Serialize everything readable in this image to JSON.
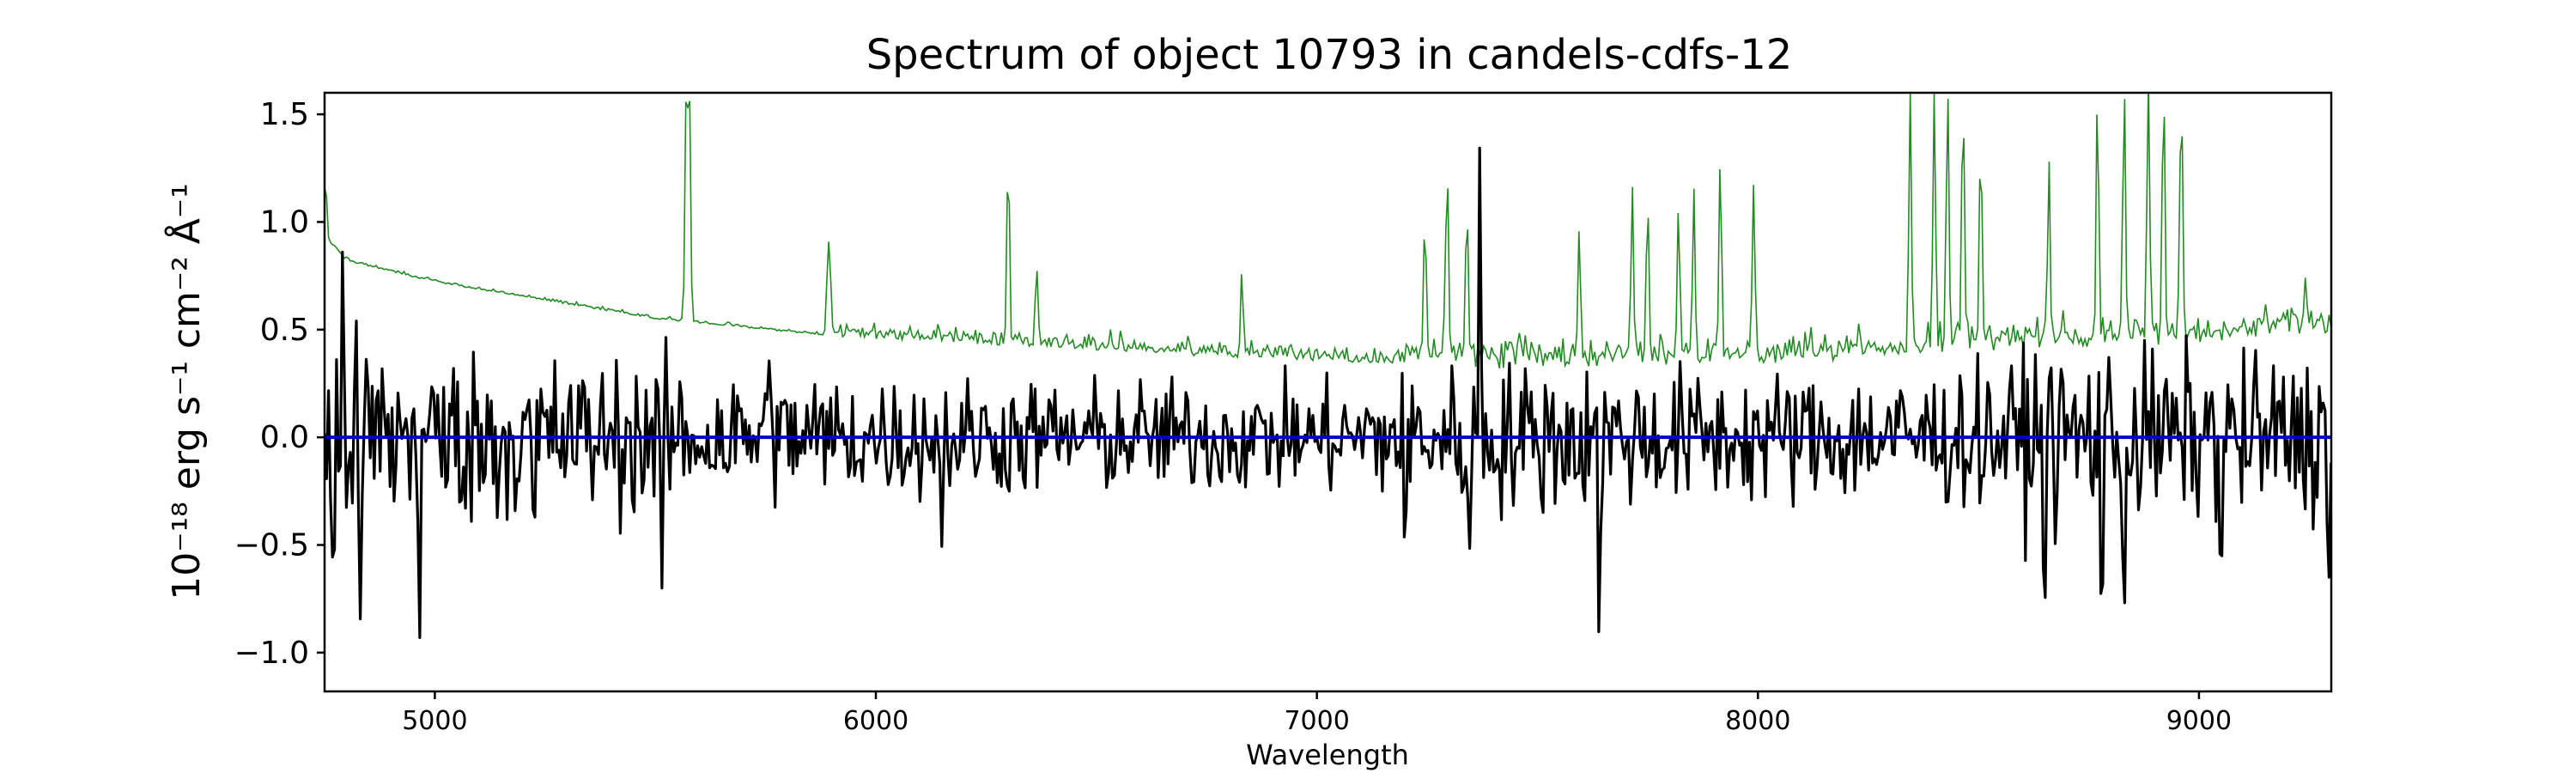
{
  "chart_data": {
    "type": "line",
    "title": "Spectrum of object 10793 in candels-cdfs-12",
    "xlabel": "Wavelength",
    "ylabel": "10⁻¹⁸ erg s⁻¹ cm⁻² Å⁻¹",
    "xlim": [
      4750,
      9300
    ],
    "ylim": [
      -1.18,
      1.6
    ],
    "xticks": [
      5000,
      6000,
      7000,
      8000,
      9000
    ],
    "yticks": [
      -1.0,
      -0.5,
      0.0,
      0.5,
      1.0,
      1.5
    ],
    "ytick_labels": [
      "−1.0",
      "−0.5",
      "0.0",
      "0.5",
      "1.0",
      "1.5"
    ],
    "grid": false,
    "series": [
      {
        "role": "error",
        "color": "#228b22",
        "continuum": [
          [
            4750,
            0.93
          ],
          [
            4800,
            0.82
          ],
          [
            5000,
            0.72
          ],
          [
            5500,
            0.55
          ],
          [
            6000,
            0.45
          ],
          [
            6500,
            0.4
          ],
          [
            7000,
            0.35
          ],
          [
            7500,
            0.3
          ],
          [
            8000,
            0.33
          ],
          [
            8500,
            0.38
          ],
          [
            9000,
            0.42
          ],
          [
            9300,
            0.47
          ]
        ],
        "peaks": [
          [
            4752,
            1.2
          ],
          [
            5570,
            1.6
          ],
          [
            5577,
            1.6
          ],
          [
            5891,
            0.82
          ],
          [
            5896,
            0.75
          ],
          [
            6300,
            1.3
          ],
          [
            6364,
            0.75
          ],
          [
            6830,
            0.75
          ],
          [
            7245,
            1.0
          ],
          [
            7295,
            1.2
          ],
          [
            7340,
            1.1
          ],
          [
            7595,
            0.95
          ],
          [
            7715,
            1.1
          ],
          [
            7750,
            1.05
          ],
          [
            7820,
            1.05
          ],
          [
            7855,
            1.1
          ],
          [
            7915,
            1.25
          ],
          [
            7990,
            1.1
          ],
          [
            8345,
            1.6
          ],
          [
            8400,
            1.6
          ],
          [
            8430,
            1.6
          ],
          [
            8465,
            1.5
          ],
          [
            8505,
            1.3
          ],
          [
            8660,
            1.2
          ],
          [
            8770,
            1.6
          ],
          [
            8830,
            1.6
          ],
          [
            8885,
            1.6
          ],
          [
            8920,
            1.6
          ],
          [
            8960,
            1.6
          ],
          [
            9240,
            0.65
          ]
        ]
      },
      {
        "role": "flux",
        "color": "#000000",
        "noise_sigma": [
          [
            4750,
            0.42
          ],
          [
            5000,
            0.33
          ],
          [
            6000,
            0.22
          ],
          [
            7000,
            0.2
          ],
          [
            7400,
            0.28
          ],
          [
            8000,
            0.24
          ],
          [
            8500,
            0.25
          ],
          [
            8700,
            0.35
          ],
          [
            9000,
            0.3
          ],
          [
            9300,
            0.3
          ]
        ],
        "spikes": [
          [
            4770,
            -1.02
          ],
          [
            4792,
            1.07
          ],
          [
            4830,
            -0.95
          ],
          [
            4965,
            -1.0
          ],
          [
            5225,
            -0.68
          ],
          [
            5515,
            -0.7
          ],
          [
            5760,
            0.6
          ],
          [
            6150,
            -0.52
          ],
          [
            7200,
            -0.7
          ],
          [
            7370,
            1.49
          ],
          [
            7345,
            -0.72
          ],
          [
            7640,
            -0.98
          ],
          [
            8650,
            -0.92
          ],
          [
            8780,
            -1.03
          ],
          [
            8830,
            -1.0
          ],
          [
            9050,
            -0.88
          ],
          [
            9295,
            -0.65
          ]
        ]
      },
      {
        "role": "model",
        "color": "#0000cd",
        "x": [
          4750,
          9300
        ],
        "y": [
          0.0,
          0.0
        ]
      }
    ]
  }
}
